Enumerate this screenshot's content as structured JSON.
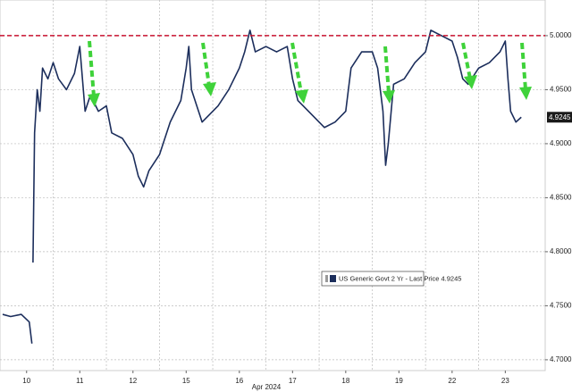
{
  "chart_data": {
    "type": "line",
    "x_axis_label": "Apr 2024",
    "xlim": [
      -0.5,
      9.75
    ],
    "xticks": [
      {
        "value": 0,
        "label": "10"
      },
      {
        "value": 1,
        "label": "11"
      },
      {
        "value": 2,
        "label": "12"
      },
      {
        "value": 3,
        "label": "15"
      },
      {
        "value": 4,
        "label": "16"
      },
      {
        "value": 5,
        "label": "17"
      },
      {
        "value": 6,
        "label": "18"
      },
      {
        "value": 7,
        "label": "19"
      },
      {
        "value": 8,
        "label": "22"
      },
      {
        "value": 9,
        "label": "23"
      }
    ],
    "ylim": [
      4.69,
      5.033
    ],
    "yticks": [
      {
        "value": 4.7,
        "label": "4.7000"
      },
      {
        "value": 4.75,
        "label": "4.7500"
      },
      {
        "value": 4.8,
        "label": "4.8000"
      },
      {
        "value": 4.85,
        "label": "4.8500"
      },
      {
        "value": 4.9,
        "label": "4.9000"
      },
      {
        "value": 4.95,
        "label": "4.9500"
      },
      {
        "value": 5.0,
        "label": "5.0000"
      }
    ],
    "grid": true,
    "hline": {
      "value": 5.0,
      "color": "#c8102e"
    },
    "last_price": 4.9245,
    "series": [
      {
        "name": "US Generic Govt 2 Yr - Last Price 4.9245",
        "color": "#1c2e5c",
        "x": [
          -0.45,
          -0.3,
          -0.1,
          0.05,
          0.1,
          0.12,
          0.12,
          0.15,
          0.2,
          0.25,
          0.3,
          0.4,
          0.5,
          0.6,
          0.75,
          0.9,
          1.0,
          1.05,
          1.1,
          1.2,
          1.35,
          1.5,
          1.6,
          1.8,
          2.0,
          2.1,
          2.2,
          2.3,
          2.5,
          2.7,
          2.9,
          3.0,
          3.05,
          3.1,
          3.2,
          3.3,
          3.4,
          3.6,
          3.8,
          4.0,
          4.1,
          4.2,
          4.3,
          4.5,
          4.7,
          4.9,
          5.0,
          5.1,
          5.2,
          5.4,
          5.6,
          5.8,
          6.0,
          6.1,
          6.3,
          6.5,
          6.6,
          6.7,
          6.75,
          6.8,
          6.9,
          7.1,
          7.3,
          7.5,
          7.6,
          7.8,
          8.0,
          8.1,
          8.2,
          8.3,
          8.5,
          8.7,
          8.9,
          9.0,
          9.05,
          9.1,
          9.2,
          9.3
        ],
        "values": [
          4.742,
          4.74,
          4.742,
          4.735,
          4.715,
          null,
          4.79,
          4.91,
          4.95,
          4.93,
          4.97,
          4.96,
          4.975,
          4.96,
          4.95,
          4.965,
          4.99,
          4.96,
          4.93,
          4.945,
          4.93,
          4.935,
          4.91,
          4.905,
          4.89,
          4.87,
          4.86,
          4.875,
          4.89,
          4.92,
          4.94,
          4.97,
          4.99,
          4.95,
          4.935,
          4.92,
          4.925,
          4.935,
          4.95,
          4.97,
          4.985,
          5.005,
          4.985,
          4.99,
          4.985,
          4.99,
          4.96,
          4.94,
          4.935,
          4.925,
          4.915,
          4.92,
          4.93,
          4.97,
          4.985,
          4.985,
          4.97,
          4.93,
          4.88,
          4.9,
          4.955,
          4.96,
          4.975,
          4.985,
          5.005,
          5.0,
          4.995,
          4.98,
          4.96,
          4.955,
          4.97,
          4.975,
          4.985,
          4.995,
          4.96,
          4.93,
          4.92,
          4.9245
        ]
      }
    ]
  }
}
